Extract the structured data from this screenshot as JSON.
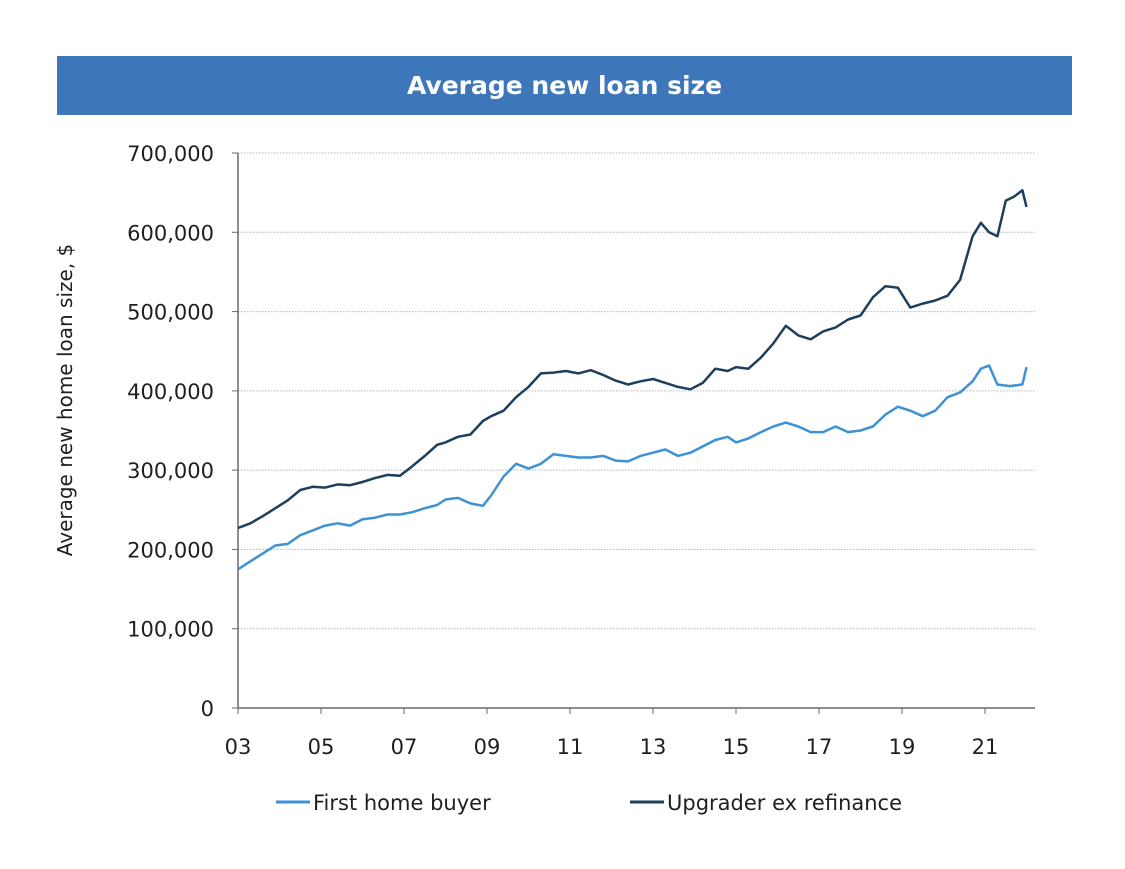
{
  "chart_data": {
    "type": "line",
    "title": "Average new loan size",
    "ylabel": "Average new home loan size, $",
    "xlabel": "",
    "x_tick_labels": [
      "03",
      "05",
      "07",
      "09",
      "11",
      "13",
      "15",
      "17",
      "19",
      "21"
    ],
    "y_tick_labels": [
      "0",
      "100,000",
      "200,000",
      "300,000",
      "400,000",
      "500,000",
      "600,000",
      "700,000"
    ],
    "ylim": [
      0,
      700000
    ],
    "xlim": [
      2003,
      2022
    ],
    "grid": "horizontal dotted",
    "legend_position": "bottom",
    "series": [
      {
        "name": "First home buyer",
        "color": "#3d92d3",
        "points": [
          [
            2003.0,
            175000
          ],
          [
            2003.3,
            185000
          ],
          [
            2003.6,
            195000
          ],
          [
            2003.9,
            205000
          ],
          [
            2004.2,
            207000
          ],
          [
            2004.5,
            218000
          ],
          [
            2004.8,
            224000
          ],
          [
            2005.1,
            230000
          ],
          [
            2005.4,
            233000
          ],
          [
            2005.7,
            230000
          ],
          [
            2006.0,
            238000
          ],
          [
            2006.3,
            240000
          ],
          [
            2006.6,
            244000
          ],
          [
            2006.9,
            244000
          ],
          [
            2007.2,
            247000
          ],
          [
            2007.5,
            252000
          ],
          [
            2007.8,
            256000
          ],
          [
            2008.0,
            263000
          ],
          [
            2008.3,
            265000
          ],
          [
            2008.6,
            258000
          ],
          [
            2008.9,
            255000
          ],
          [
            2009.1,
            268000
          ],
          [
            2009.4,
            292000
          ],
          [
            2009.7,
            308000
          ],
          [
            2010.0,
            302000
          ],
          [
            2010.3,
            308000
          ],
          [
            2010.6,
            320000
          ],
          [
            2010.9,
            318000
          ],
          [
            2011.2,
            316000
          ],
          [
            2011.5,
            316000
          ],
          [
            2011.8,
            318000
          ],
          [
            2012.1,
            312000
          ],
          [
            2012.4,
            311000
          ],
          [
            2012.7,
            318000
          ],
          [
            2013.0,
            322000
          ],
          [
            2013.3,
            326000
          ],
          [
            2013.6,
            318000
          ],
          [
            2013.9,
            322000
          ],
          [
            2014.2,
            330000
          ],
          [
            2014.5,
            338000
          ],
          [
            2014.8,
            342000
          ],
          [
            2015.0,
            335000
          ],
          [
            2015.3,
            340000
          ],
          [
            2015.6,
            348000
          ],
          [
            2015.9,
            355000
          ],
          [
            2016.2,
            360000
          ],
          [
            2016.5,
            355000
          ],
          [
            2016.8,
            348000
          ],
          [
            2017.1,
            348000
          ],
          [
            2017.4,
            355000
          ],
          [
            2017.7,
            348000
          ],
          [
            2018.0,
            350000
          ],
          [
            2018.3,
            355000
          ],
          [
            2018.6,
            370000
          ],
          [
            2018.9,
            380000
          ],
          [
            2019.2,
            375000
          ],
          [
            2019.5,
            368000
          ],
          [
            2019.8,
            375000
          ],
          [
            2020.1,
            392000
          ],
          [
            2020.4,
            398000
          ],
          [
            2020.7,
            412000
          ],
          [
            2020.9,
            428000
          ],
          [
            2021.1,
            432000
          ],
          [
            2021.3,
            408000
          ],
          [
            2021.6,
            406000
          ],
          [
            2021.9,
            408000
          ],
          [
            2022.0,
            430000
          ]
        ]
      },
      {
        "name": "Upgrader ex refinance",
        "color": "#1d3f5d",
        "points": [
          [
            2003.0,
            227000
          ],
          [
            2003.3,
            233000
          ],
          [
            2003.6,
            242000
          ],
          [
            2003.9,
            252000
          ],
          [
            2004.2,
            262000
          ],
          [
            2004.5,
            275000
          ],
          [
            2004.8,
            279000
          ],
          [
            2005.1,
            278000
          ],
          [
            2005.4,
            282000
          ],
          [
            2005.7,
            281000
          ],
          [
            2006.0,
            285000
          ],
          [
            2006.3,
            290000
          ],
          [
            2006.6,
            294000
          ],
          [
            2006.9,
            293000
          ],
          [
            2007.2,
            305000
          ],
          [
            2007.5,
            318000
          ],
          [
            2007.8,
            332000
          ],
          [
            2008.0,
            335000
          ],
          [
            2008.3,
            342000
          ],
          [
            2008.6,
            345000
          ],
          [
            2008.9,
            362000
          ],
          [
            2009.1,
            368000
          ],
          [
            2009.4,
            375000
          ],
          [
            2009.7,
            392000
          ],
          [
            2010.0,
            405000
          ],
          [
            2010.3,
            422000
          ],
          [
            2010.6,
            423000
          ],
          [
            2010.9,
            425000
          ],
          [
            2011.2,
            422000
          ],
          [
            2011.5,
            426000
          ],
          [
            2011.8,
            420000
          ],
          [
            2012.1,
            413000
          ],
          [
            2012.4,
            408000
          ],
          [
            2012.7,
            412000
          ],
          [
            2013.0,
            415000
          ],
          [
            2013.3,
            410000
          ],
          [
            2013.6,
            405000
          ],
          [
            2013.9,
            402000
          ],
          [
            2014.2,
            410000
          ],
          [
            2014.5,
            428000
          ],
          [
            2014.8,
            425000
          ],
          [
            2015.0,
            430000
          ],
          [
            2015.3,
            428000
          ],
          [
            2015.6,
            442000
          ],
          [
            2015.9,
            460000
          ],
          [
            2016.2,
            482000
          ],
          [
            2016.5,
            470000
          ],
          [
            2016.8,
            465000
          ],
          [
            2017.1,
            475000
          ],
          [
            2017.4,
            480000
          ],
          [
            2017.7,
            490000
          ],
          [
            2018.0,
            495000
          ],
          [
            2018.3,
            518000
          ],
          [
            2018.6,
            532000
          ],
          [
            2018.9,
            530000
          ],
          [
            2019.2,
            505000
          ],
          [
            2019.5,
            510000
          ],
          [
            2019.8,
            514000
          ],
          [
            2020.1,
            520000
          ],
          [
            2020.4,
            540000
          ],
          [
            2020.7,
            595000
          ],
          [
            2020.9,
            612000
          ],
          [
            2021.1,
            600000
          ],
          [
            2021.3,
            595000
          ],
          [
            2021.5,
            640000
          ],
          [
            2021.7,
            645000
          ],
          [
            2021.9,
            653000
          ],
          [
            2022.0,
            632000
          ]
        ]
      }
    ]
  }
}
